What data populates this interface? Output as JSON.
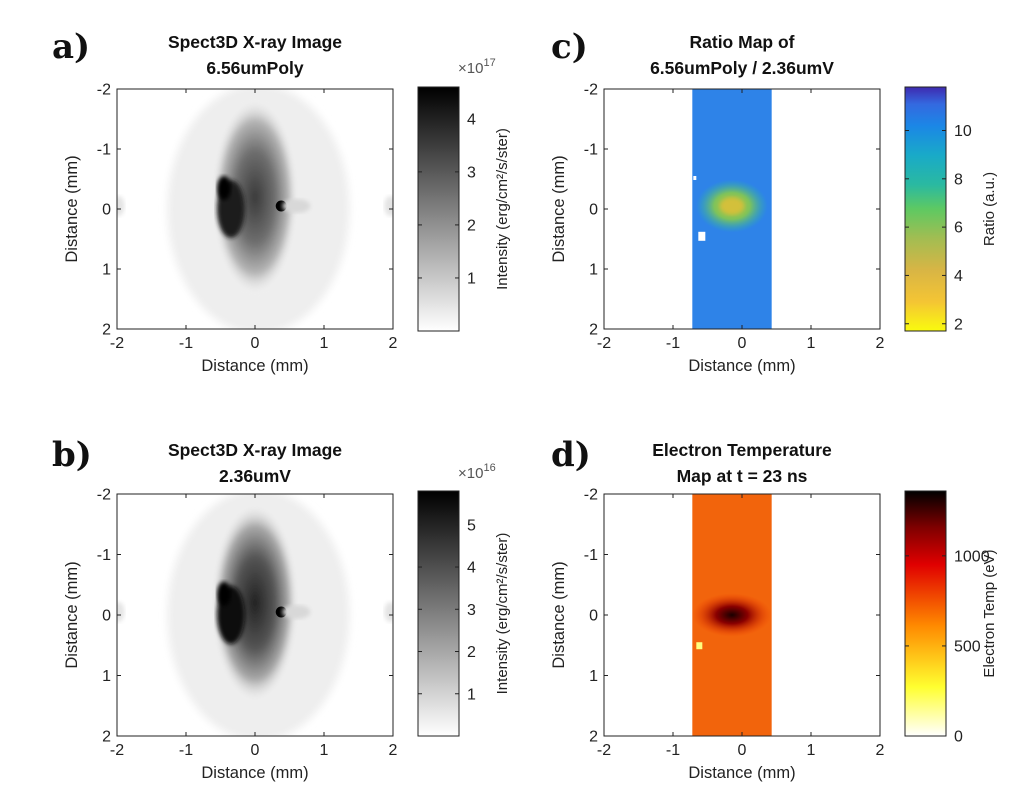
{
  "chart_data": [
    {
      "type": "heatmap",
      "panel": "a)",
      "title": [
        "Spect3D X-ray Image",
        "6.56umPoly"
      ],
      "xlabel": "Distance (mm)",
      "ylabel": "Distance (mm)",
      "xlim": [
        -2,
        2
      ],
      "ylim": [
        -2,
        2
      ],
      "y_reversed": true,
      "xticks": [
        "-2",
        "-1",
        "0",
        "1",
        "2"
      ],
      "yticks": [
        "-2",
        "-1",
        "0",
        "1",
        "2"
      ],
      "data_extent_x": [
        -2,
        2
      ],
      "colorbar": {
        "label": "Intensity (erg/cm²/s/ster)",
        "exponent": "×10",
        "exponent_power": "17",
        "colormap": "gray-reversed",
        "range": [
          0,
          4.6
        ],
        "ticks": [
          "1",
          "2",
          "3",
          "4"
        ],
        "tick_values": [
          1,
          2,
          3,
          4
        ]
      }
    },
    {
      "type": "heatmap",
      "panel": "b)",
      "title": [
        "Spect3D X-ray Image",
        "2.36umV"
      ],
      "xlabel": "Distance (mm)",
      "ylabel": "Distance (mm)",
      "xlim": [
        -2,
        2
      ],
      "ylim": [
        -2,
        2
      ],
      "y_reversed": true,
      "xticks": [
        "-2",
        "-1",
        "0",
        "1",
        "2"
      ],
      "yticks": [
        "-2",
        "-1",
        "0",
        "1",
        "2"
      ],
      "data_extent_x": [
        -2,
        2
      ],
      "colorbar": {
        "label": "Intensity (erg/cm²/s/ster)",
        "exponent": "×10",
        "exponent_power": "16",
        "colormap": "gray-reversed",
        "range": [
          0,
          5.8
        ],
        "ticks": [
          "1",
          "2",
          "3",
          "4",
          "5"
        ],
        "tick_values": [
          1,
          2,
          3,
          4,
          5
        ]
      }
    },
    {
      "type": "heatmap",
      "panel": "c)",
      "title": [
        "Ratio Map of",
        "6.56umPoly / 2.36umV"
      ],
      "xlabel": "Distance (mm)",
      "ylabel": "Distance (mm)",
      "xlim": [
        -2,
        2
      ],
      "ylim": [
        -2,
        2
      ],
      "y_reversed": true,
      "xticks": [
        "-2",
        "-1",
        "0",
        "1",
        "2"
      ],
      "yticks": [
        "-2",
        "-1",
        "0",
        "1",
        "2"
      ],
      "data_extent_x": [
        -0.72,
        0.43
      ],
      "colorbar": {
        "label": "Ratio (a.u.)",
        "colormap": "parula-reversed",
        "range": [
          1.7,
          11.8
        ],
        "ticks": [
          "2",
          "4",
          "6",
          "8",
          "10"
        ],
        "tick_values": [
          2,
          4,
          6,
          8,
          10
        ]
      }
    },
    {
      "type": "heatmap",
      "panel": "d)",
      "title": [
        "Electron Temperature",
        "Map at t = 23 ns"
      ],
      "xlabel": "Distance (mm)",
      "ylabel": "Distance (mm)",
      "xlim": [
        -2,
        2
      ],
      "ylim": [
        -2,
        2
      ],
      "y_reversed": true,
      "xticks": [
        "-2",
        "-1",
        "0",
        "1",
        "2"
      ],
      "yticks": [
        "-2",
        "-1",
        "0",
        "1",
        "2"
      ],
      "data_extent_x": [
        -0.72,
        0.43
      ],
      "colorbar": {
        "label": "Electron Temp (eV)",
        "colormap": "hot-reversed",
        "range": [
          0,
          1360
        ],
        "ticks": [
          "0",
          "500",
          "1000"
        ],
        "tick_values": [
          0,
          500,
          1000
        ]
      }
    }
  ]
}
